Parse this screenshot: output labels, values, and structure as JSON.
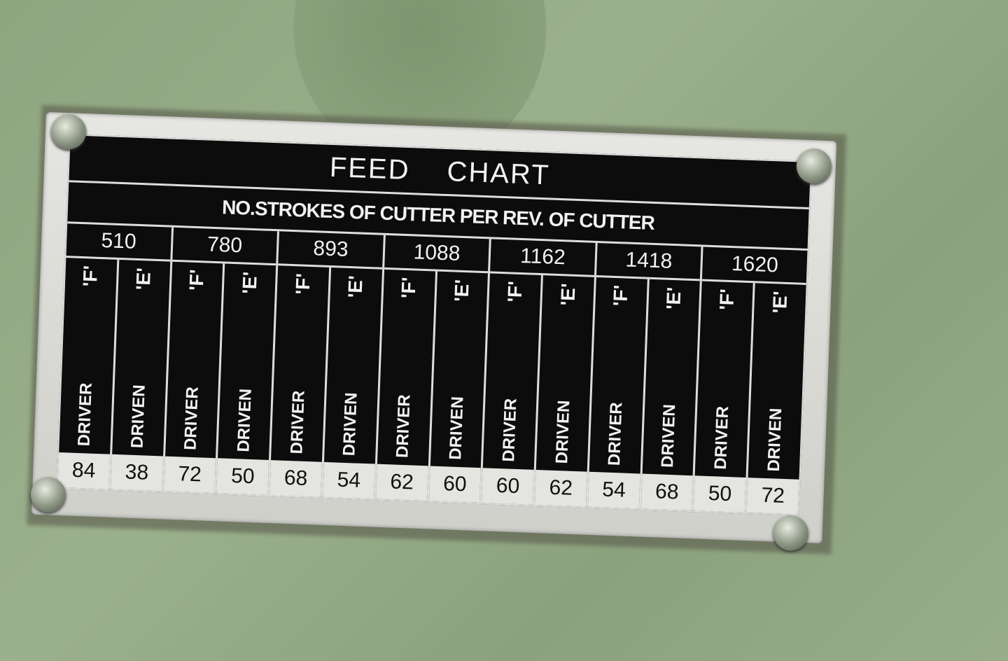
{
  "plate": {
    "title": "FEED CHART",
    "subtitle": "NO.STROKES OF CUTTER PER REV. OF CUTTER",
    "driver_label": "DRIVER",
    "driven_label": "DRIVEN",
    "driver_gear": "'F'",
    "driven_gear": "'E'",
    "columns": [
      {
        "strokes": "510",
        "driver": "84",
        "driven": "38"
      },
      {
        "strokes": "780",
        "driver": "72",
        "driven": "50"
      },
      {
        "strokes": "893",
        "driver": "68",
        "driven": "54"
      },
      {
        "strokes": "1088",
        "driver": "62",
        "driven": "60"
      },
      {
        "strokes": "1162",
        "driver": "60",
        "driven": "62"
      },
      {
        "strokes": "1418",
        "driver": "54",
        "driven": "68"
      },
      {
        "strokes": "1620",
        "driver": "50",
        "driven": "72"
      }
    ]
  },
  "colors": {
    "background": "#8ea580",
    "plate": "#0c0c0c",
    "frame": "#dcdcd8"
  }
}
